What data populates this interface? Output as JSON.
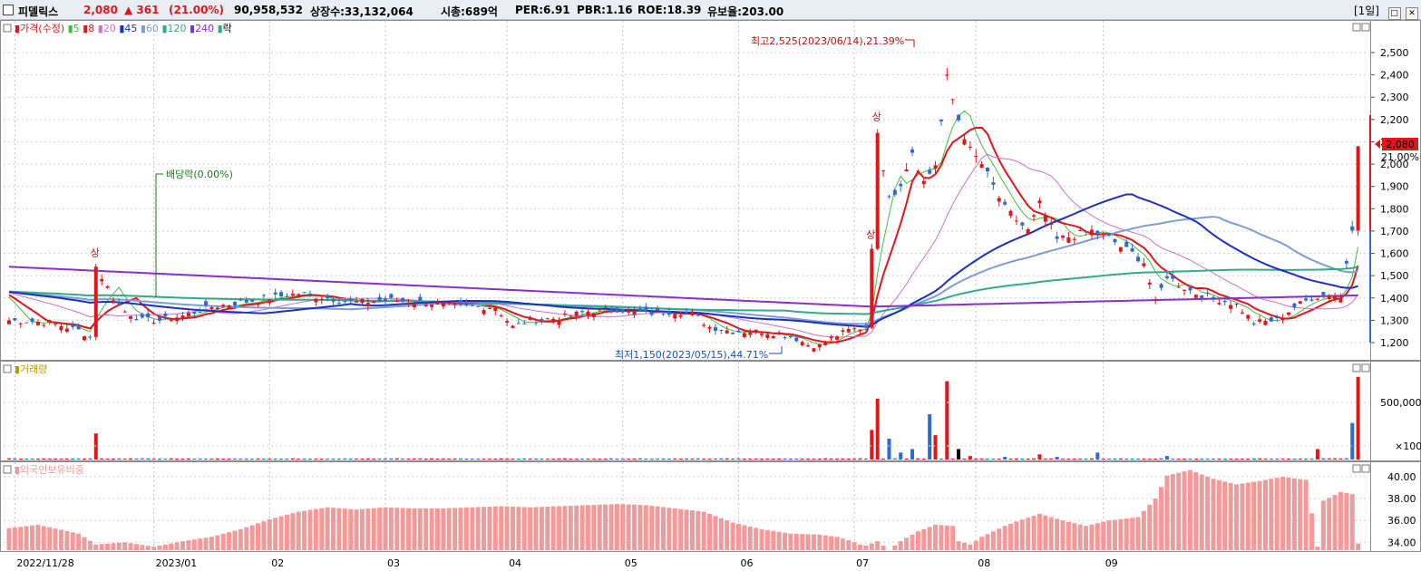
{
  "header": {
    "name": "피델릭스",
    "price": "2,080",
    "change": "▲ 361",
    "change_pct": "(21.00%)",
    "volume": "90,958,532",
    "shares": "상장수:33,132,064",
    "market_cap": "시총:689억",
    "per": "PER:6.91",
    "pbr": "PBR:1.16",
    "roe": "ROE:18.39",
    "holding_ratio": "유보율:203.00",
    "period": "[1일]"
  },
  "colors": {
    "up": "#e0161b",
    "down": "#2d6bd0",
    "ma5": "#3fbf3f",
    "ma8": "#e0161b",
    "ma20": "#cf6ec9",
    "ma45": "#1a2fc4",
    "ma60": "#7d9ed2",
    "ma120": "#33aa88",
    "ma240": "#8a2ecf",
    "foreign": "#f29a9a"
  },
  "legend": {
    "price_label": "가격(수정)",
    "ma": [
      "5",
      "8",
      "20",
      "45",
      "60",
      "120",
      "240"
    ],
    "ex_label": "락",
    "volume_label": "거래량",
    "foreign_label": "외국인보유비중"
  },
  "annotations": {
    "high": "최고2,525(2023/06/14),21.39%",
    "low": "최저1,150(2023/05/15),44.71%",
    "dividend": "배당락(0.00%)",
    "upper_limit": "상",
    "current_price": "2,080",
    "current_pct": "21.00%"
  },
  "chart_data": [
    {
      "type": "candlestick",
      "title": "",
      "y_ticks": [
        "1,200",
        "1,300",
        "1,400",
        "1,500",
        "1,600",
        "1,700",
        "1,800",
        "1,900",
        "2,000",
        "2,100",
        "2,200",
        "2,300",
        "2,400",
        "2,500"
      ],
      "ylim": [
        1150,
        2575
      ],
      "x_ticks": [
        "2022/11/28",
        "2023/01",
        "02",
        "03",
        "04",
        "05",
        "06",
        "07",
        "08",
        "09"
      ],
      "anchors_close": [
        [
          0,
          1300
        ],
        [
          7,
          1290
        ],
        [
          12,
          1255
        ],
        [
          14,
          1225
        ],
        [
          15,
          1540
        ],
        [
          18,
          1400
        ],
        [
          20,
          1340
        ],
        [
          23,
          1300
        ],
        [
          26,
          1300
        ],
        [
          30,
          1320
        ],
        [
          35,
          1360
        ],
        [
          40,
          1380
        ],
        [
          45,
          1400
        ],
        [
          50,
          1420
        ],
        [
          55,
          1400
        ],
        [
          60,
          1380
        ],
        [
          66,
          1390
        ],
        [
          72,
          1380
        ],
        [
          78,
          1360
        ],
        [
          84,
          1360
        ],
        [
          87,
          1270
        ],
        [
          90,
          1300
        ],
        [
          95,
          1310
        ],
        [
          100,
          1340
        ],
        [
          105,
          1350
        ],
        [
          110,
          1330
        ],
        [
          115,
          1340
        ],
        [
          118,
          1330
        ],
        [
          121,
          1270
        ],
        [
          125,
          1250
        ],
        [
          130,
          1250
        ],
        [
          135,
          1230
        ],
        [
          138,
          1190
        ],
        [
          140,
          1185
        ],
        [
          142,
          1220
        ],
        [
          145,
          1255
        ],
        [
          148,
          1270
        ],
        [
          149,
          1620
        ],
        [
          150,
          2140
        ],
        [
          152,
          1840
        ],
        [
          154,
          1920
        ],
        [
          156,
          2060
        ],
        [
          158,
          1920
        ],
        [
          160,
          2000
        ],
        [
          162,
          2380
        ],
        [
          164,
          2200
        ],
        [
          166,
          2060
        ],
        [
          168,
          2000
        ],
        [
          170,
          1900
        ],
        [
          172,
          1800
        ],
        [
          174,
          1750
        ],
        [
          176,
          1700
        ],
        [
          178,
          1820
        ],
        [
          181,
          1660
        ],
        [
          184,
          1680
        ],
        [
          187,
          1700
        ],
        [
          190,
          1670
        ],
        [
          192,
          1630
        ],
        [
          194,
          1600
        ],
        [
          196,
          1560
        ],
        [
          198,
          1380
        ],
        [
          200,
          1500
        ],
        [
          202,
          1460
        ],
        [
          205,
          1420
        ],
        [
          208,
          1400
        ],
        [
          212,
          1370
        ],
        [
          215,
          1290
        ],
        [
          219,
          1300
        ],
        [
          222,
          1360
        ],
        [
          225,
          1400
        ],
        [
          228,
          1420
        ],
        [
          230,
          1400
        ],
        [
          232,
          1720
        ],
        [
          233,
          2080
        ]
      ],
      "upper_limit_days": [
        15,
        149,
        150,
        233
      ],
      "ma_periods": [
        5,
        8,
        20,
        45,
        60,
        120,
        240
      ],
      "ma240_start": 1540
    },
    {
      "type": "bar",
      "title": "",
      "y_ticks": [
        "500,000",
        "×100"
      ],
      "note": "거래량 (volume); tall spikes on limit-up days",
      "spikes": [
        [
          15,
          30
        ],
        [
          149,
          34
        ],
        [
          150,
          70
        ],
        [
          152,
          24
        ],
        [
          154,
          8
        ],
        [
          156,
          12
        ],
        [
          159,
          52
        ],
        [
          160,
          28
        ],
        [
          162,
          90
        ],
        [
          164,
          12
        ],
        [
          166,
          4
        ],
        [
          172,
          3
        ],
        [
          178,
          6
        ],
        [
          181,
          3
        ],
        [
          188,
          8
        ],
        [
          200,
          4
        ],
        [
          226,
          12
        ],
        [
          232,
          42
        ],
        [
          233,
          95
        ]
      ]
    },
    {
      "type": "bar",
      "title": "",
      "y_ticks": [
        "40.00",
        "38.00",
        "36.00",
        "34.00"
      ],
      "ylim": [
        33.2,
        41.4
      ],
      "anchors": [
        [
          0,
          35.3
        ],
        [
          5,
          35.6
        ],
        [
          12,
          34.8
        ],
        [
          15,
          33.8
        ],
        [
          20,
          34.0
        ],
        [
          25,
          33.6
        ],
        [
          30,
          34.1
        ],
        [
          35,
          34.5
        ],
        [
          40,
          35.2
        ],
        [
          45,
          36.1
        ],
        [
          50,
          36.8
        ],
        [
          55,
          37.2
        ],
        [
          60,
          37.0
        ],
        [
          65,
          37.2
        ],
        [
          70,
          37.1
        ],
        [
          75,
          37.1
        ],
        [
          80,
          37.2
        ],
        [
          85,
          37.3
        ],
        [
          90,
          37.2
        ],
        [
          95,
          37.3
        ],
        [
          100,
          37.4
        ],
        [
          105,
          37.5
        ],
        [
          110,
          37.4
        ],
        [
          115,
          37.1
        ],
        [
          120,
          36.8
        ],
        [
          125,
          35.8
        ],
        [
          130,
          35.2
        ],
        [
          135,
          34.8
        ],
        [
          140,
          34.7
        ],
        [
          143,
          34.5
        ],
        [
          145,
          34.2
        ],
        [
          147,
          33.8
        ],
        [
          148,
          33.7
        ],
        [
          150,
          34.1
        ],
        [
          152,
          33.3
        ],
        [
          154,
          34.1
        ],
        [
          157,
          35.0
        ],
        [
          160,
          35.6
        ],
        [
          163,
          35.5
        ],
        [
          164,
          34.1
        ],
        [
          166,
          33.8
        ],
        [
          168,
          34.5
        ],
        [
          170,
          35.0
        ],
        [
          172,
          35.5
        ],
        [
          174,
          35.9
        ],
        [
          178,
          36.6
        ],
        [
          182,
          36.0
        ],
        [
          186,
          35.5
        ],
        [
          190,
          36.0
        ],
        [
          195,
          36.3
        ],
        [
          198,
          38.0
        ],
        [
          200,
          40.1
        ],
        [
          204,
          40.6
        ],
        [
          208,
          39.8
        ],
        [
          212,
          39.3
        ],
        [
          216,
          39.6
        ],
        [
          220,
          40.0
        ],
        [
          224,
          39.7
        ],
        [
          226,
          33.6
        ],
        [
          227,
          37.8
        ],
        [
          230,
          38.6
        ],
        [
          232,
          38.4
        ],
        [
          233,
          33.9
        ]
      ]
    }
  ]
}
